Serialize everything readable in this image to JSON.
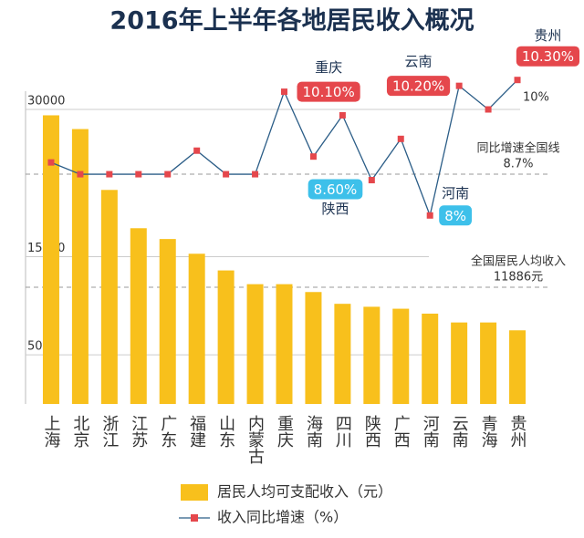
{
  "chart_data": {
    "type": "bar-line",
    "title": "2016年上半年各地居民收入概况",
    "categories": [
      "上海",
      "北京",
      "浙江",
      "江苏",
      "广东",
      "福建",
      "山东",
      "内蒙古",
      "重庆",
      "海南",
      "四川",
      "陕西",
      "广西",
      "河南",
      "云南",
      "青海",
      "贵州"
    ],
    "series": [
      {
        "name": "居民人均可支配收入（元）",
        "type": "bar",
        "color": "#f8c01c",
        "values": [
          29400,
          28000,
          21800,
          17900,
          16800,
          15300,
          13600,
          12200,
          12200,
          11400,
          10200,
          9900,
          9700,
          9200,
          8300,
          8300,
          7500
        ]
      },
      {
        "name": "收入同比增速（%）",
        "type": "line",
        "axis": "y2",
        "color": "#2b5d87",
        "marker_color": "#e5474c",
        "values": [
          8.9,
          8.7,
          8.7,
          8.7,
          8.7,
          9.1,
          8.7,
          8.7,
          10.1,
          9.0,
          9.7,
          8.6,
          9.3,
          8.0,
          10.2,
          9.8,
          10.3
        ],
        "value_labels": [
          null,
          null,
          null,
          null,
          null,
          null,
          null,
          null,
          "10.10%",
          null,
          null,
          "8.60%",
          null,
          "8%",
          "10.20%",
          null,
          "10.30%"
        ]
      }
    ],
    "ylim": [
      0,
      30000
    ],
    "yticks": [
      5000,
      15000,
      30000
    ],
    "y2lim": [
      4.8,
      9.8
    ],
    "y2ticks": [
      {
        "value": 10,
        "label": "10%"
      }
    ],
    "reference_lines": [
      {
        "axis": "y2",
        "value": 8.7,
        "label": "同比增速全国线",
        "value_label": "8.7%"
      },
      {
        "axis": "y",
        "value": 11886,
        "label": "全国居民人均收入",
        "value_label": "11886元"
      }
    ],
    "callout_colors": {
      "above": "#e5474c",
      "below": "#3dc0ea"
    },
    "grid": true
  }
}
